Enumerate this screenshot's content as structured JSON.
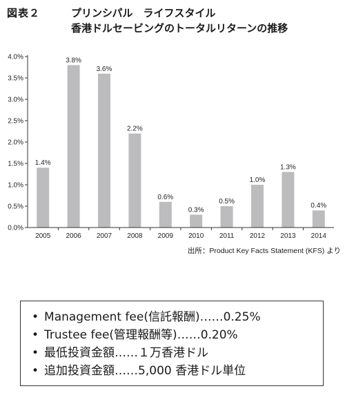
{
  "header": {
    "figure_label": "図表２",
    "title_line1": "プリンシパル　ライフスタイル",
    "title_line2": "香港ドルセービングのトータルリターンの推移"
  },
  "chart_data": {
    "type": "bar",
    "title": "",
    "xlabel": "",
    "ylabel": "",
    "categories": [
      "2005",
      "2006",
      "2007",
      "2008",
      "2009",
      "2010",
      "2011",
      "2012",
      "2013",
      "2014"
    ],
    "values": [
      1.4,
      3.8,
      3.6,
      2.2,
      0.6,
      0.3,
      0.5,
      1.0,
      1.3,
      0.4
    ],
    "data_labels": [
      "1.4%",
      "3.8%",
      "3.6%",
      "2.2%",
      "0.6%",
      "0.3%",
      "0.5%",
      "1.0%",
      "1.3%",
      "0.4%"
    ],
    "yticks": [
      0,
      0.5,
      1.0,
      1.5,
      2.0,
      2.5,
      3.0,
      3.5,
      4.0
    ],
    "ytick_labels": [
      "0.0%",
      "0.5%",
      "1.0%",
      "1.5%",
      "2.0%",
      "2.5%",
      "3.0%",
      "3.5%",
      "4.0%"
    ],
    "ylim": [
      0,
      4.0
    ],
    "grid": false,
    "bar_color": "#bcbcbe"
  },
  "source_note": "出所：Product Key Facts Statement (KFS) より",
  "fees": {
    "items": [
      "Management fee(信託報酬)……0.25%",
      "Trustee fee(管理報酬等)……0.20%",
      "最低投資金額……１万香港ドル",
      "追加投資金額……5,000 香港ドル単位"
    ]
  }
}
